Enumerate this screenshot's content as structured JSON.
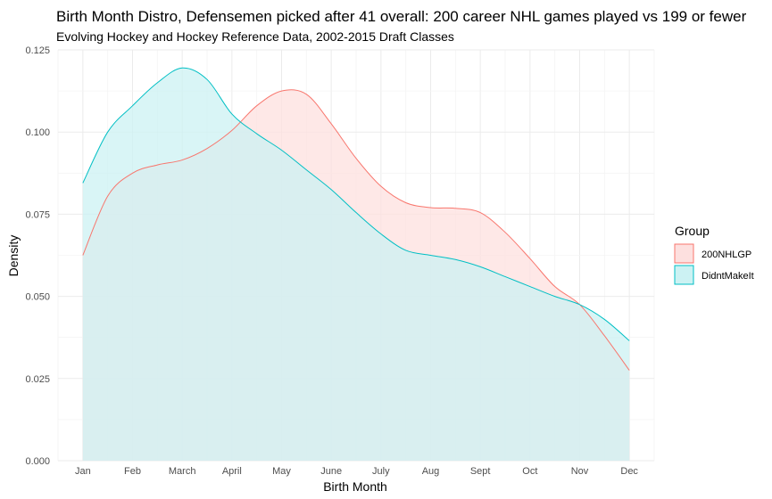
{
  "chart_data": {
    "type": "area",
    "title": "Birth Month Distro, Defensemen picked after 41 overall: 200 career NHL games played vs 199 or fewer",
    "subtitle": "Evolving Hockey and Hockey Reference Data, 2002-2015 Draft Classes",
    "xlabel": "Birth Month",
    "ylabel": "Density",
    "categories": [
      "Jan",
      "Feb",
      "March",
      "April",
      "May",
      "June",
      "July",
      "Aug",
      "Sept",
      "Oct",
      "Nov",
      "Dec"
    ],
    "x": [
      1,
      1.5,
      2,
      2.5,
      3,
      3.5,
      4,
      4.5,
      5,
      5.5,
      6,
      6.5,
      7,
      7.5,
      8,
      8.5,
      9,
      9.5,
      10,
      10.5,
      11,
      11.5,
      12
    ],
    "ylim": [
      0,
      0.125
    ],
    "y_ticks": [
      0.0,
      0.025,
      0.05,
      0.075,
      0.1,
      0.125
    ],
    "y_tick_labels": [
      "0.000",
      "0.025",
      "0.050",
      "0.075",
      "0.100",
      "0.125"
    ],
    "grid": true,
    "legend": {
      "title": "Group",
      "placement": "right"
    },
    "series": [
      {
        "name": "200NHLGP",
        "line_color": "#f8766d",
        "fill_color": "#fde0df",
        "values": [
          0.0625,
          0.0805,
          0.0875,
          0.09,
          0.0915,
          0.095,
          0.1005,
          0.108,
          0.1125,
          0.1115,
          0.1025,
          0.092,
          0.0835,
          0.0785,
          0.077,
          0.0768,
          0.0755,
          0.0695,
          0.0615,
          0.053,
          0.0475,
          0.038,
          0.0275
        ]
      },
      {
        "name": "DidntMakeIt",
        "line_color": "#00bfc4",
        "fill_color": "#ccf2f3",
        "values": [
          0.0845,
          0.1,
          0.108,
          0.115,
          0.1195,
          0.116,
          0.1055,
          0.0995,
          0.0945,
          0.0885,
          0.0825,
          0.0755,
          0.069,
          0.064,
          0.0625,
          0.0612,
          0.059,
          0.056,
          0.053,
          0.05,
          0.0475,
          0.043,
          0.0365
        ]
      }
    ]
  }
}
